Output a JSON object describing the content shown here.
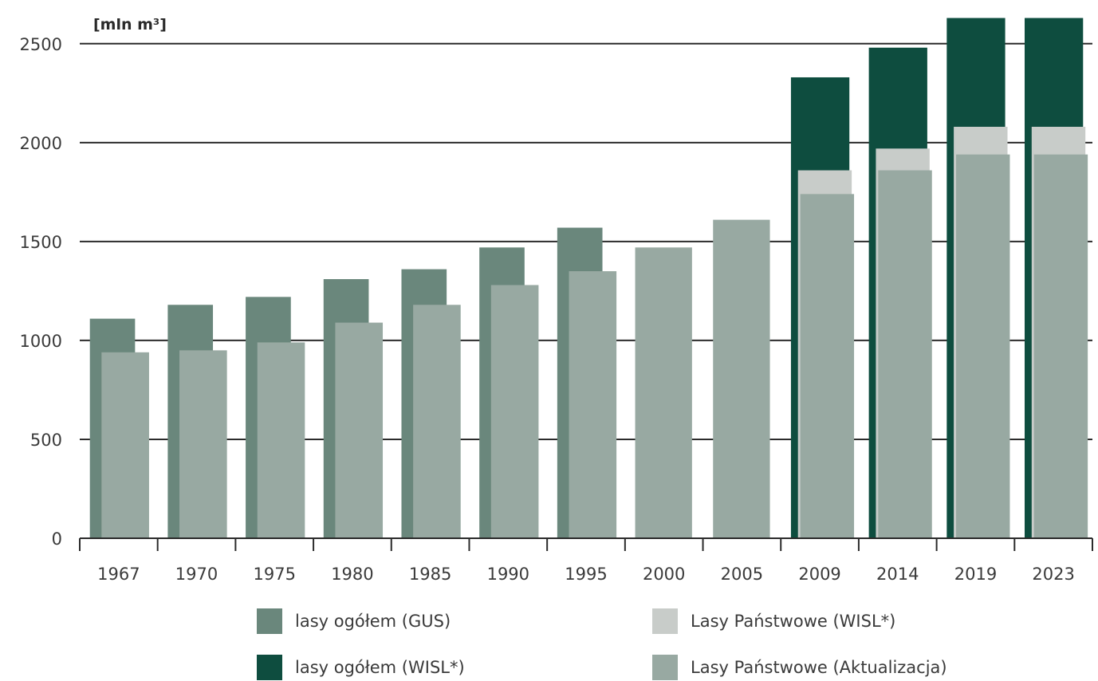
{
  "chart_data": {
    "type": "bar",
    "ylabel": "[mln m³]",
    "ylim": [
      0,
      2600
    ],
    "yticks": [
      0,
      500,
      1000,
      1500,
      2000,
      2500
    ],
    "grid": true,
    "legend_position": "bottom",
    "categories": [
      "1967",
      "1970",
      "1975",
      "1980",
      "1985",
      "1990",
      "1995",
      "2000",
      "2005",
      "2009",
      "2014",
      "2019",
      "2023"
    ],
    "series": [
      {
        "name": "lasy ogółem (GUS)",
        "color": "#6a877c",
        "values": [
          1110,
          1180,
          1220,
          1310,
          1360,
          1470,
          1570,
          null,
          null,
          null,
          null,
          null,
          null
        ]
      },
      {
        "name": "lasy ogółem (WISL*)",
        "color": "#0e4d3f",
        "values": [
          null,
          null,
          null,
          null,
          null,
          null,
          null,
          null,
          null,
          2330,
          2480,
          2630,
          2630
        ]
      },
      {
        "name": "Lasy Państwowe (WISL*)",
        "color": "#c8ccc9",
        "values": [
          null,
          null,
          null,
          null,
          null,
          null,
          null,
          null,
          null,
          1860,
          1970,
          2080,
          2080
        ]
      },
      {
        "name": "Lasy Państwowe (Aktualizacja)",
        "color": "#98a9a2",
        "values": [
          940,
          950,
          990,
          1090,
          1180,
          1280,
          1350,
          1470,
          1610,
          1740,
          1860,
          1940,
          1940
        ]
      }
    ]
  }
}
